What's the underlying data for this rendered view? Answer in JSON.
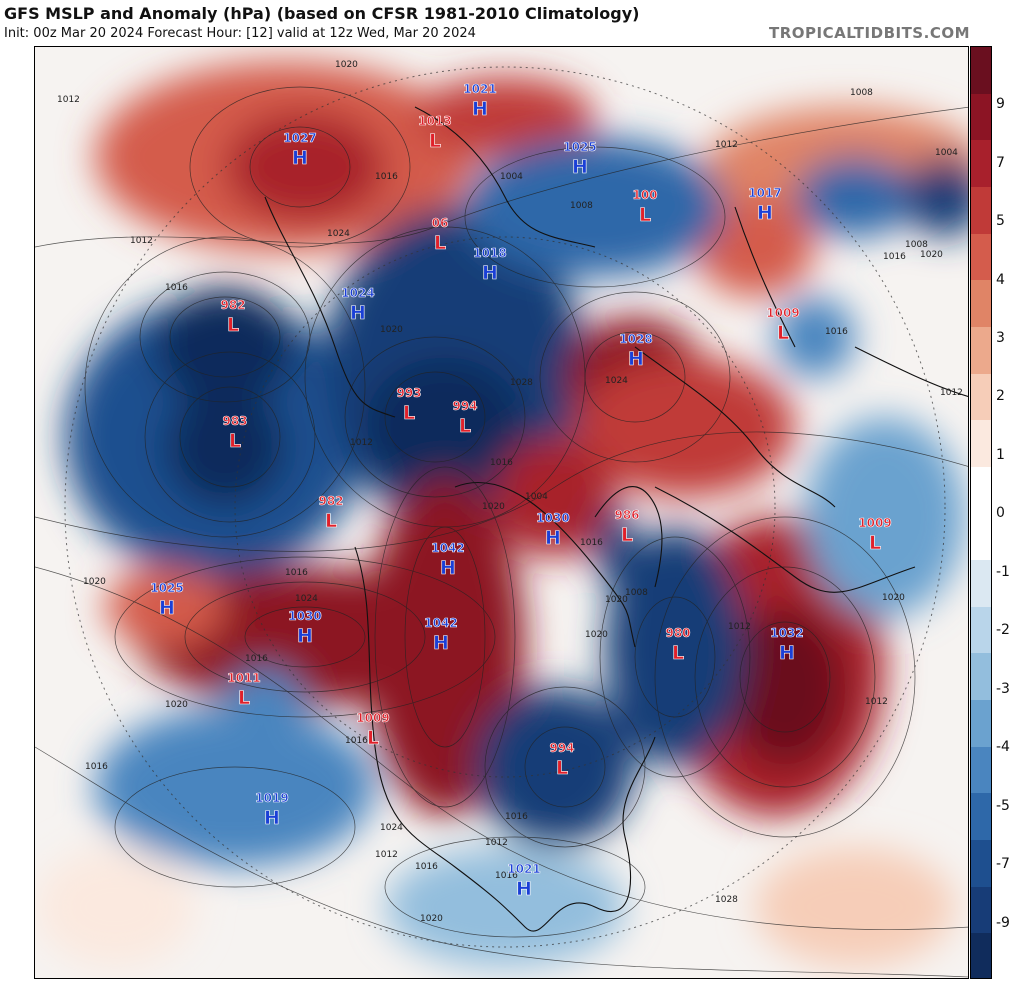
{
  "header": {
    "title": "GFS MSLP and Anomaly (hPa) (based on CFSR 1981-2010 Climatology)",
    "subtitle": "Init: 00z Mar 20 2024   Forecast Hour: [12]   valid at 12z Wed, Mar 20 2024",
    "brand": "TROPICALTIDBITS.COM"
  },
  "colorbar": {
    "labels": [
      "9",
      "7",
      "5",
      "4",
      "3",
      "2",
      "1",
      "0",
      "-1",
      "-2",
      "-3",
      "-4",
      "-5",
      "-7",
      "-9"
    ],
    "colors": [
      "#6a0f1f",
      "#8c1424",
      "#a8202c",
      "#c03a38",
      "#d45c4c",
      "#e08466",
      "#eca98c",
      "#f6cdb8",
      "#fbe9df",
      "#ffffff",
      "#ffffff",
      "#dbe8f2",
      "#b9d5ea",
      "#93bedd",
      "#6ba2cf",
      "#4a85bf",
      "#2e68a9",
      "#1e4f8f",
      "#173c77",
      "#102c5c"
    ]
  },
  "systems": [
    {
      "type": "H",
      "value": "1027"
    },
    {
      "type": "L",
      "value": "1013"
    },
    {
      "type": "H",
      "value": "1021"
    },
    {
      "type": "H",
      "value": "1025"
    },
    {
      "type": "H",
      "value": "1017"
    },
    {
      "type": "L",
      "value": "100"
    },
    {
      "type": "L",
      "value": "06"
    },
    {
      "type": "H",
      "value": "1018"
    },
    {
      "type": "L",
      "value": "982"
    },
    {
      "type": "H",
      "value": "1024"
    },
    {
      "type": "L",
      "value": "1009"
    },
    {
      "type": "H",
      "value": "1028"
    },
    {
      "type": "L",
      "value": "983"
    },
    {
      "type": "L",
      "value": "993"
    },
    {
      "type": "L",
      "value": "994"
    },
    {
      "type": "L",
      "value": "982"
    },
    {
      "type": "H",
      "value": "1030"
    },
    {
      "type": "L",
      "value": "986"
    },
    {
      "type": "L",
      "value": "1009"
    },
    {
      "type": "H",
      "value": "1042"
    },
    {
      "type": "H",
      "value": "1025"
    },
    {
      "type": "H",
      "value": "1030"
    },
    {
      "type": "H",
      "value": "1042"
    },
    {
      "type": "L",
      "value": "980"
    },
    {
      "type": "H",
      "value": "1032"
    },
    {
      "type": "L",
      "value": "1011"
    },
    {
      "type": "L",
      "value": "1009"
    },
    {
      "type": "L",
      "value": "994"
    },
    {
      "type": "H",
      "value": "1019"
    },
    {
      "type": "H",
      "value": "1021"
    }
  ],
  "isobar_labels": [
    "1012",
    "1020",
    "1016",
    "1008",
    "1012",
    "1016",
    "1020",
    "1024",
    "1004",
    "1008",
    "1016",
    "1012",
    "1020",
    "1028",
    "1024",
    "1004",
    "1012",
    "1020",
    "1016",
    "1024",
    "1016",
    "1016",
    "1020",
    "1020",
    "1020",
    "1020",
    "1016",
    "1016",
    "1012",
    "1016",
    "1012",
    "1016",
    "1016",
    "1020",
    "1012",
    "1016",
    "1024",
    "1020",
    "1028",
    "1008",
    "1012",
    "1004",
    "1008",
    "1016",
    "1012"
  ],
  "colors": {
    "high_label": "#1a3fd6",
    "low_label": "#e0202a",
    "positive_anomaly": "#9c1a26",
    "negative_anomaly": "#173c77",
    "neutral": "#ffffff"
  }
}
